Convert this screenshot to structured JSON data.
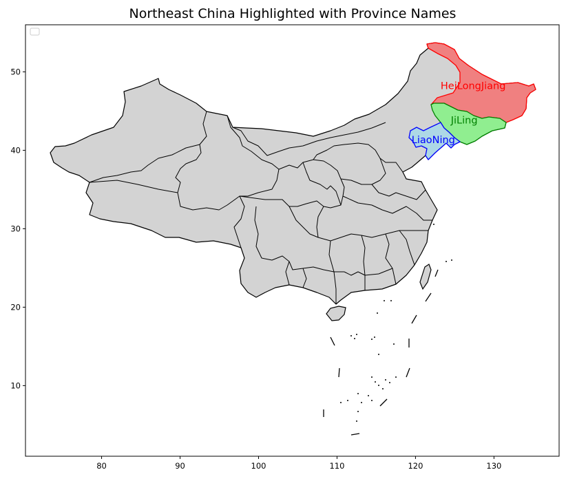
{
  "title": "Northeast China Highlighted with Province Names",
  "map": {
    "x_ticks": [
      "80",
      "90",
      "100",
      "110",
      "120",
      "130"
    ],
    "y_ticks": [
      "10",
      "20",
      "30",
      "40",
      "50"
    ],
    "xlim": [
      70.3,
      138.3
    ],
    "ylim": [
      1.0,
      56.0
    ],
    "legend": "empty box, top-left",
    "base_fill": "#d3d3d3",
    "border_color": "#000000"
  },
  "provinces": [
    {
      "name": "HeiLongJiang",
      "fill": "#f08080",
      "edge": "#ff0000",
      "label_color": "#ff0000",
      "label_lon": 123.2,
      "label_lat": 47.8
    },
    {
      "name": "JiLing",
      "fill": "#90ee90",
      "edge": "#008000",
      "label_color": "#008000",
      "label_lon": 124.5,
      "label_lat": 43.4
    },
    {
      "name": "LiaoNing",
      "fill": "#add8e6",
      "edge": "#0000ff",
      "label_color": "#0000ff",
      "label_lon": 119.5,
      "label_lat": 40.9
    }
  ]
}
